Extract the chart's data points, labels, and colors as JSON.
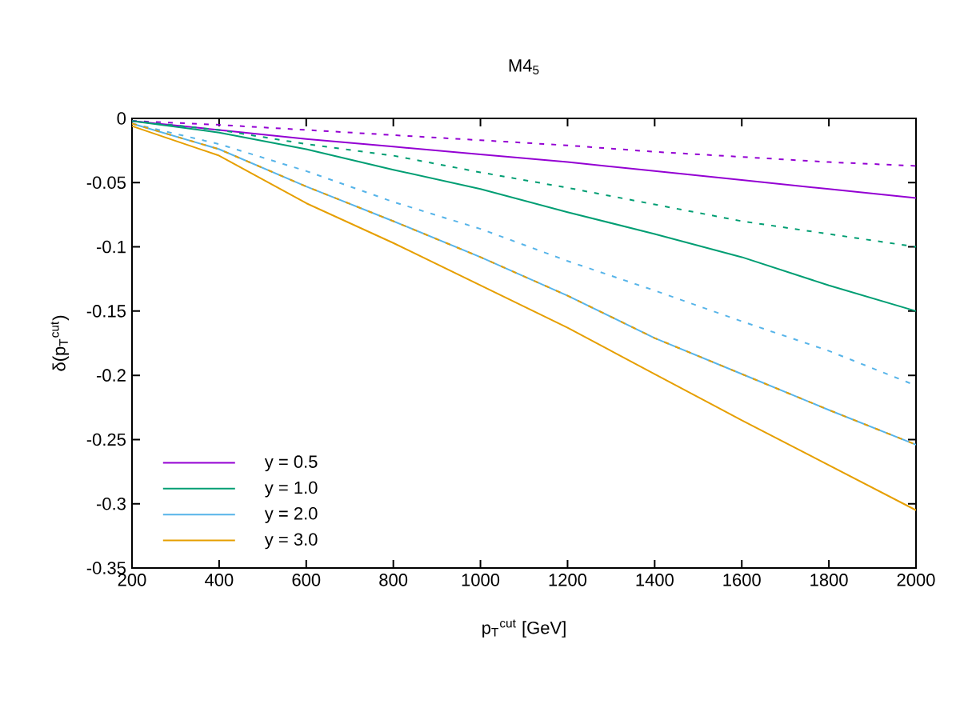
{
  "chart_data": {
    "type": "line",
    "title": "M4$_{5}$",
    "xlabel": "p$_{T}$$^{cut}$ [GeV]",
    "ylabel": "δ(p$_{T}$$^{cut}$)",
    "x": [
      200,
      400,
      600,
      800,
      1000,
      1200,
      1400,
      1600,
      1800,
      2000
    ],
    "series": [
      {
        "name": "y = 0.5",
        "color": "#9400d3",
        "line_style": "solid",
        "values": [
          -0.002,
          -0.009,
          -0.016,
          -0.022,
          -0.028,
          -0.034,
          -0.041,
          -0.048,
          -0.055,
          -0.062
        ]
      },
      {
        "name": "y = 1.0",
        "color": "#009e73",
        "line_style": "solid",
        "values": [
          -0.002,
          -0.011,
          -0.024,
          -0.04,
          -0.055,
          -0.073,
          -0.09,
          -0.108,
          -0.13,
          -0.15
        ]
      },
      {
        "name": "y = 2.0",
        "color": "#56b4e9",
        "line_style": "solid",
        "values": [
          -0.004,
          -0.024,
          -0.053,
          -0.08,
          -0.108,
          -0.138,
          -0.171,
          -0.199,
          -0.227,
          -0.254
        ]
      },
      {
        "name": "y = 3.0",
        "color": "#e69f00",
        "line_style": "solid",
        "values": [
          -0.006,
          -0.029,
          -0.066,
          -0.097,
          -0.13,
          -0.163,
          -0.199,
          -0.235,
          -0.27,
          -0.305
        ]
      },
      {
        "color": "#9400d3",
        "line_style": "dashed",
        "values": [
          -0.002,
          -0.005,
          -0.009,
          -0.013,
          -0.017,
          -0.021,
          -0.026,
          -0.03,
          -0.034,
          -0.037
        ]
      },
      {
        "color": "#009e73",
        "line_style": "dashed",
        "values": [
          -0.002,
          -0.009,
          -0.02,
          -0.029,
          -0.042,
          -0.054,
          -0.067,
          -0.08,
          -0.09,
          -0.1
        ]
      },
      {
        "color": "#56b4e9",
        "line_style": "dashed",
        "values": [
          -0.004,
          -0.02,
          -0.041,
          -0.065,
          -0.086,
          -0.111,
          -0.134,
          -0.158,
          -0.181,
          -0.208
        ]
      },
      {
        "color": "#e69f00",
        "line_style": "dashed",
        "values": [
          -0.004,
          -0.024,
          -0.053,
          -0.08,
          -0.108,
          -0.138,
          -0.171,
          -0.199,
          -0.227,
          -0.254
        ]
      }
    ],
    "xlim": [
      200,
      2000
    ],
    "ylim": [
      -0.35,
      0
    ],
    "xticks": [
      200,
      400,
      600,
      800,
      1000,
      1200,
      1400,
      1600,
      1800,
      2000
    ],
    "yticks": [
      0,
      -0.05,
      -0.1,
      -0.15,
      -0.2,
      -0.25,
      -0.3,
      -0.35
    ],
    "grid": false,
    "legend": "bottom left",
    "marker": "none"
  }
}
